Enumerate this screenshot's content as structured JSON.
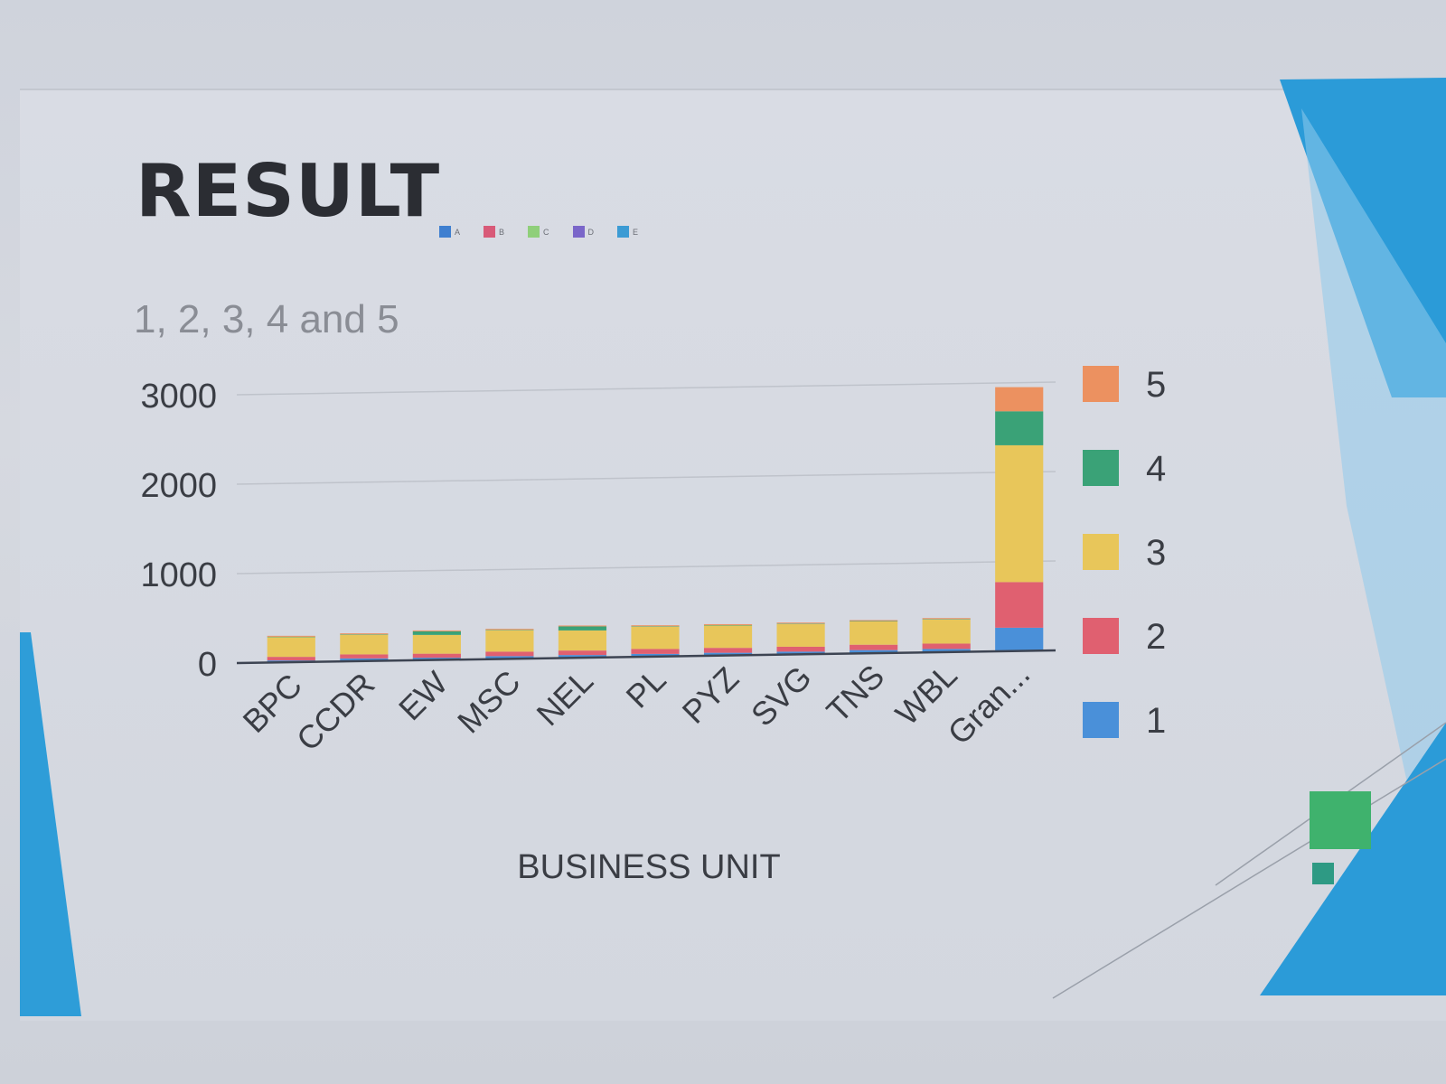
{
  "slide": {
    "title": "RESULT",
    "accent_color": "#2b9bd8",
    "legend_icons": [
      {
        "label": "A",
        "color": "#3f7fd0"
      },
      {
        "label": "B",
        "color": "#d85a78"
      },
      {
        "label": "C",
        "color": "#8fcf7a"
      },
      {
        "label": "D",
        "color": "#7a66c9"
      },
      {
        "label": "E",
        "color": "#3c9bd4"
      }
    ]
  },
  "chart_data": {
    "type": "bar",
    "stacked": true,
    "title": "1, 2, 3, 4 and 5",
    "xlabel": "BUSINESS UNIT",
    "ylabel": "",
    "ylim": [
      0,
      3000
    ],
    "yticks": [
      0,
      1000,
      2000,
      3000
    ],
    "grid": true,
    "legend_position": "right",
    "categories": [
      "BPC",
      "CCDR",
      "EW",
      "MSC",
      "NEL",
      "PL",
      "PYZ",
      "SVG",
      "TNS",
      "WBL",
      "Gran..."
    ],
    "series": [
      {
        "name": "1",
        "color": "#4a90d9",
        "values": [
          20,
          30,
          25,
          30,
          30,
          30,
          30,
          30,
          35,
          35,
          260
        ]
      },
      {
        "name": "2",
        "color": "#e06070",
        "values": [
          40,
          45,
          45,
          50,
          50,
          55,
          55,
          55,
          60,
          60,
          510
        ]
      },
      {
        "name": "3",
        "color": "#e8c65a",
        "values": [
          220,
          220,
          210,
          240,
          225,
          250,
          250,
          255,
          260,
          270,
          1530
        ]
      },
      {
        "name": "4",
        "color": "#3aa277",
        "values": [
          5,
          5,
          40,
          5,
          45,
          5,
          5,
          5,
          5,
          5,
          380
        ]
      },
      {
        "name": "5",
        "color": "#ec9160",
        "values": [
          10,
          10,
          10,
          10,
          10,
          10,
          10,
          10,
          10,
          10,
          270
        ]
      }
    ]
  }
}
